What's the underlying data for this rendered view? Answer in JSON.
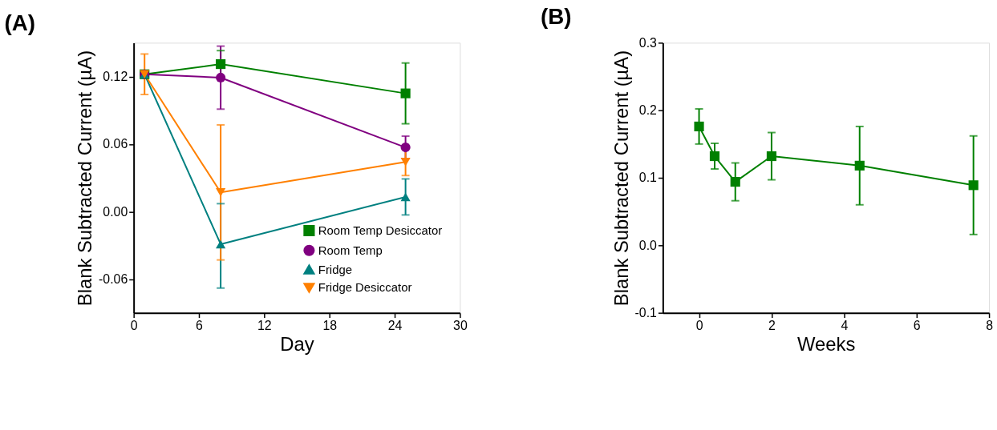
{
  "chart_data": [
    {
      "type": "line",
      "title": "(A)",
      "xlabel": "Day",
      "ylabel": "Blank Subtracted Current (µA)",
      "xlim": [
        0,
        30
      ],
      "xticks": [
        0,
        6,
        12,
        18,
        24,
        30
      ],
      "ylim": [
        -0.09,
        0.15
      ],
      "yticks": [
        {
          "value": -0.06,
          "label": "-0.06"
        },
        {
          "value": 0,
          "label": "0.00"
        },
        {
          "value": 0.06,
          "label": "0.06"
        },
        {
          "value": 0.12,
          "label": "0.12"
        }
      ],
      "grid": false,
      "legend": "bottom right",
      "line_style": "solid",
      "series": [
        {
          "name": "Room Temp Desiccator",
          "color": "#008000",
          "marker": "square",
          "x": [
            1,
            8,
            25
          ],
          "values": [
            0.122,
            0.131,
            0.105
          ],
          "errors": [
            null,
            0.012,
            0.027
          ]
        },
        {
          "name": "Room Temp",
          "color": "#800080",
          "marker": "circle",
          "x": [
            1,
            8,
            25
          ],
          "values": [
            0.122,
            0.119,
            0.057
          ],
          "errors": [
            null,
            0.028,
            0.01
          ]
        },
        {
          "name": "Fridge",
          "color": "#008080",
          "marker": "triangle",
          "x": [
            1,
            8,
            25
          ],
          "values": [
            0.122,
            -0.029,
            0.013
          ],
          "errors": [
            null,
            [
              -0.068,
              0.007
            ],
            0.016
          ]
        },
        {
          "name": "Fridge Desiccator",
          "color": "#ff8000",
          "marker": "triangle-down",
          "x": [
            1,
            8,
            25
          ],
          "values": [
            0.122,
            0.017,
            0.044
          ],
          "errors": [
            0.018,
            0.06,
            0.012
          ]
        }
      ]
    },
    {
      "type": "line",
      "title": "(B)",
      "xlabel": "Weeks",
      "ylabel": "Blank Subtracted Current (µA)",
      "xlim": [
        -1,
        8
      ],
      "xticks": [
        0,
        2,
        4,
        6,
        8
      ],
      "ylim": [
        -0.1,
        0.3
      ],
      "yticks": [
        {
          "value": -0.1,
          "label": "-0.1"
        },
        {
          "value": 0,
          "label": "0.0"
        },
        {
          "value": 0.1,
          "label": "0.1"
        },
        {
          "value": 0.2,
          "label": "0.2"
        },
        {
          "value": 0.3,
          "label": "0.3"
        }
      ],
      "grid": false,
      "line_style": "solid",
      "series": [
        {
          "color": "#008000",
          "marker": "square",
          "x": [
            0,
            0.43,
            1,
            2,
            4.43,
            7.57
          ],
          "values": [
            0.176,
            0.132,
            0.094,
            0.132,
            0.118,
            0.089
          ],
          "errors": [
            0.026,
            0.019,
            0.028,
            0.035,
            0.058,
            0.073
          ]
        }
      ]
    }
  ]
}
